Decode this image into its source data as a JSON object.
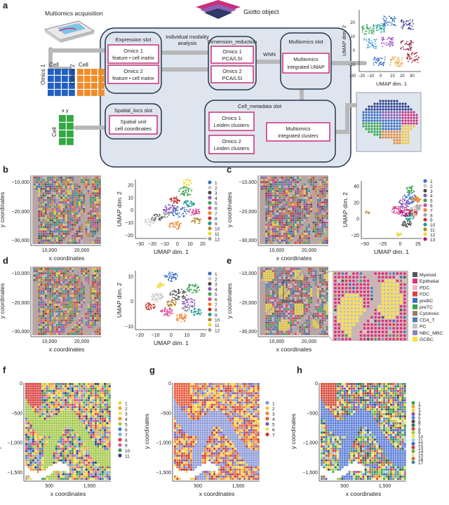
{
  "colors": {
    "magenta": "#c8307a",
    "navy": "#26364f",
    "panel_bg": "#dfe5ee",
    "matrix_blue": "#1f5fbf",
    "matrix_orange": "#f08c28",
    "matrix_green": "#33a843"
  },
  "panel_a": {
    "letter": "a",
    "giotto_object": "Giotto object",
    "multiomics_acquisition": "Multiomics acquisition",
    "cell1": "Cell",
    "cell2": "Cell",
    "cell3": "Cell",
    "omics1_axis": "Omics 1",
    "omics2_axis": "Omics 2",
    "xy_label": "x  y",
    "expression_slot": "Expression slot",
    "individual_modality": "Individual modality",
    "analysis": "analysis",
    "dimension_reduction": "Dimension_reduction",
    "multiomics_slot": "Multiomics slot",
    "wnn": "WNN",
    "omics1_fm_1": "Omics 1",
    "omics1_fm_2": "feature • cell matrix",
    "omics2_fm_1": "Omics 2",
    "omics2_fm_2": "feature • cell matrix",
    "omics1_pca_1": "Omics 1",
    "omics1_pca_2": "PCA/LSI",
    "omics2_pca_1": "Omics 2",
    "omics2_pca_2": "PCA/LSI",
    "multiomics_umap_1": "Multiomics",
    "multiomics_umap_2": "integrated UMAP",
    "spatial_slot": "Spatial_locs slot",
    "spatial_unit_1": "Spatial unit",
    "spatial_unit_2": "cell coordinates",
    "cell_metadata_slot": "Cell_metadata slot",
    "omics1_leiden_1": "Omics 1",
    "omics1_leiden_2": "Leiden clusters",
    "omics2_leiden_1": "Omics 2",
    "omics2_leiden_2": "Leiden clusters",
    "multi_clusters_1": "Multiomics",
    "multi_clusters_2": "integrated clusters",
    "umap_xlabel": "UMAP dim. 1",
    "umap_ylabel": "UMAP dim. 2",
    "umap_xticks": [
      "−30",
      "−20",
      "−10",
      "0",
      "10",
      "20",
      "30"
    ],
    "umap_yticks": [
      "20",
      "10",
      "0",
      "−10"
    ]
  },
  "panel_b": {
    "letter": "b",
    "spatial": {
      "xlabel": "x coordinates",
      "ylabel": "y coordinates",
      "xticks": [
        "10,000",
        "20,000"
      ],
      "yticks": [
        "−10,000",
        "−20,000",
        "−30,000"
      ]
    },
    "umap": {
      "xlabel": "UMAP dim. 1",
      "ylabel": "UMAP dim. 2",
      "xticks": [
        "−30",
        "−20",
        "−10",
        "0",
        "10",
        "20"
      ],
      "yticks": [
        "20",
        "10",
        "0",
        "−10",
        "−20"
      ],
      "legend": [
        "1",
        "2",
        "3",
        "4",
        "5",
        "6",
        "7",
        "8",
        "9",
        "10",
        "11",
        "12"
      ]
    }
  },
  "panel_c": {
    "letter": "c",
    "spatial": {
      "xlabel": "x coordinates",
      "ylabel": "y coordinates",
      "xticks": [
        "10,000",
        "20,000"
      ],
      "yticks": [
        "−10,000",
        "−20,000",
        "−30,000"
      ]
    },
    "umap": {
      "xlabel": "UMAP dim. 1",
      "ylabel": "UMAP dim. 2",
      "xticks": [
        "−50",
        "−25",
        "0",
        "25"
      ],
      "yticks": [
        "40",
        "20",
        "0",
        "−20"
      ],
      "legend": [
        "1",
        "2",
        "3",
        "4",
        "5",
        "6",
        "7",
        "8",
        "9",
        "10",
        "11",
        "12",
        "13"
      ]
    }
  },
  "panel_d": {
    "letter": "d",
    "spatial": {
      "xlabel": "x coordinates",
      "ylabel": "y coordinates",
      "xticks": [
        "10,000",
        "20,000"
      ],
      "yticks": [
        "−10,000",
        "−20,000",
        "−30,000"
      ]
    },
    "umap": {
      "xlabel": "UMAP dim. 1",
      "ylabel": "UMAP dim. 2",
      "xticks": [
        "−20",
        "−10",
        "0",
        "10",
        "20"
      ],
      "yticks": [
        "10",
        "0",
        "−10"
      ],
      "legend": [
        "1",
        "2",
        "3",
        "4",
        "5",
        "6",
        "7",
        "8",
        "9",
        "10",
        "11",
        "12"
      ]
    }
  },
  "panel_e": {
    "letter": "e",
    "spatial": {
      "xlabel": "x coordinates",
      "ylabel": "y coordinates",
      "xticks": [
        "10,000",
        "20,000"
      ],
      "yticks": [
        "−10,000",
        "−20,000",
        "−30,000"
      ]
    },
    "legend": [
      "Myeloid",
      "Epithelial",
      "PDC",
      "FDC",
      "preBC",
      "preTC",
      "Cytotoxic",
      "CD4_T",
      "PC",
      "NBC_MBC",
      "GCBC"
    ]
  },
  "panel_f": {
    "letter": "f",
    "xlabel": "x coordinates",
    "ylabel": "y coordinates",
    "xticks": [
      "500",
      "1,500"
    ],
    "yticks": [
      "0",
      "−500",
      "−1,000",
      "−1,500"
    ],
    "legend": [
      "1",
      "2",
      "3",
      "4",
      "5",
      "6",
      "7",
      "8",
      "9",
      "10",
      "11"
    ]
  },
  "panel_g": {
    "letter": "g",
    "xlabel": "x coordinates",
    "ylabel": "y coordinates",
    "xticks": [
      "500",
      "1,500"
    ],
    "yticks": [
      "0",
      "−500",
      "−1,000",
      "−1,500"
    ],
    "legend": [
      "1",
      "2",
      "3",
      "4",
      "5",
      "6",
      "7"
    ]
  },
  "panel_h": {
    "letter": "h",
    "xlabel": "x coordinates",
    "ylabel": "y coordinates",
    "xticks": [
      "500",
      "1,500"
    ],
    "yticks": [
      "0",
      "−500",
      "−1,000",
      "−1,500"
    ],
    "legend": [
      "1",
      "2",
      "3",
      "4",
      "5",
      "6",
      "7",
      "8",
      "9",
      "10",
      "11",
      "12",
      "13",
      "14",
      "15",
      "16",
      "17"
    ]
  }
}
